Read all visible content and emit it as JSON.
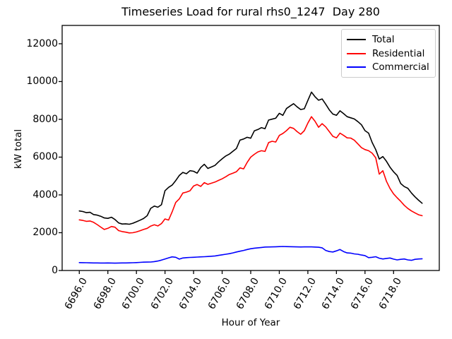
{
  "chart_data": {
    "type": "line",
    "title": "Timeseries Load for rural rhs0_1247  Day 280",
    "xlabel": "Hour of Year",
    "ylabel": "kW total",
    "xlim": [
      6694.8,
      6721.2
    ],
    "ylim": [
      0,
      12970
    ],
    "x_ticks": [
      6696,
      6698,
      6700,
      6702,
      6704,
      6706,
      6708,
      6710,
      6712,
      6714,
      6716,
      6718
    ],
    "x_tick_labels": [
      "6696.0",
      "6698.0",
      "6700.0",
      "6702.0",
      "6704.0",
      "6706.0",
      "6708.0",
      "6710.0",
      "6712.0",
      "6714.0",
      "6716.0",
      "6718.0"
    ],
    "y_ticks": [
      0,
      2000,
      4000,
      6000,
      8000,
      10000,
      12000
    ],
    "y_tick_labels": [
      "0",
      "2000",
      "4000",
      "6000",
      "8000",
      "10000",
      "12000"
    ],
    "grid": false,
    "legend_position": "upper right",
    "x_start": 6696.0,
    "x_step": 0.25,
    "series": [
      {
        "name": "Total",
        "color": "#000000",
        "values": [
          3150,
          3120,
          3060,
          3080,
          2960,
          2930,
          2870,
          2780,
          2760,
          2820,
          2700,
          2520,
          2460,
          2470,
          2450,
          2500,
          2580,
          2660,
          2750,
          2900,
          3290,
          3410,
          3350,
          3480,
          4220,
          4400,
          4520,
          4760,
          5030,
          5190,
          5120,
          5280,
          5250,
          5150,
          5450,
          5620,
          5400,
          5480,
          5560,
          5750,
          5910,
          6060,
          6160,
          6310,
          6460,
          6900,
          6960,
          7050,
          7000,
          7390,
          7460,
          7560,
          7500,
          7960,
          8010,
          8060,
          8320,
          8210,
          8570,
          8700,
          8830,
          8660,
          8520,
          8560,
          9000,
          9440,
          9200,
          9010,
          9080,
          8800,
          8500,
          8280,
          8210,
          8450,
          8300,
          8140,
          8080,
          8020,
          7880,
          7710,
          7400,
          7270,
          6780,
          6400,
          5900,
          6030,
          5780,
          5470,
          5220,
          5030,
          4600,
          4440,
          4350,
          4100,
          3900,
          3720,
          3560
        ]
      },
      {
        "name": "Residential",
        "color": "#ff0000",
        "values": [
          2680,
          2650,
          2600,
          2620,
          2550,
          2430,
          2300,
          2170,
          2230,
          2330,
          2290,
          2110,
          2060,
          2030,
          1990,
          2000,
          2040,
          2100,
          2170,
          2230,
          2350,
          2420,
          2360,
          2480,
          2730,
          2670,
          3100,
          3600,
          3790,
          4100,
          4150,
          4220,
          4470,
          4550,
          4450,
          4650,
          4560,
          4620,
          4680,
          4770,
          4850,
          4960,
          5080,
          5150,
          5230,
          5430,
          5380,
          5715,
          6000,
          6150,
          6275,
          6340,
          6300,
          6770,
          6840,
          6800,
          7150,
          7250,
          7400,
          7580,
          7520,
          7350,
          7210,
          7400,
          7800,
          8140,
          7900,
          7580,
          7770,
          7600,
          7350,
          7100,
          7020,
          7270,
          7150,
          7020,
          7010,
          6900,
          6700,
          6500,
          6400,
          6340,
          6210,
          5965,
          5100,
          5280,
          4720,
          4345,
          4050,
          3850,
          3660,
          3450,
          3280,
          3150,
          3050,
          2950,
          2900
        ]
      },
      {
        "name": "Commercial",
        "color": "#0000ff",
        "values": [
          420,
          415,
          410,
          405,
          400,
          400,
          395,
          395,
          400,
          395,
          390,
          395,
          400,
          400,
          405,
          410,
          420,
          430,
          440,
          445,
          450,
          470,
          500,
          550,
          610,
          670,
          720,
          700,
          600,
          660,
          680,
          690,
          700,
          710,
          720,
          730,
          740,
          755,
          770,
          800,
          830,
          860,
          890,
          930,
          980,
          1020,
          1060,
          1110,
          1150,
          1180,
          1200,
          1220,
          1240,
          1245,
          1250,
          1255,
          1265,
          1270,
          1265,
          1260,
          1255,
          1250,
          1245,
          1250,
          1250,
          1250,
          1240,
          1230,
          1200,
          1060,
          1000,
          980,
          1040,
          1110,
          1000,
          930,
          920,
          880,
          860,
          820,
          790,
          680,
          700,
          730,
          650,
          610,
          640,
          660,
          600,
          560,
          590,
          610,
          560,
          540,
          590,
          610,
          620
        ]
      }
    ]
  }
}
